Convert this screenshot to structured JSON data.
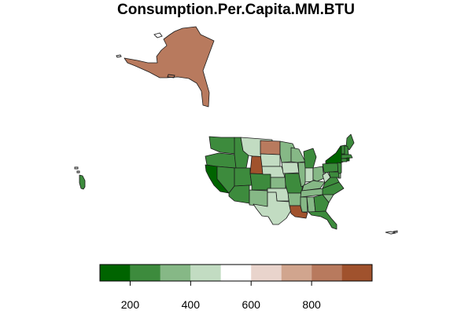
{
  "title": "Consumption.Per.Capita.MM.BTU",
  "colors": {
    "bins": [
      "#006400",
      "#3d8b3d",
      "#86b886",
      "#c2dcc2",
      "#ffffff",
      "#e9d4cc",
      "#d1a58e",
      "#b87a5e",
      "#a0522d"
    ],
    "border": "#1a1a1a"
  },
  "legend": {
    "breaks": [
      100,
      200,
      300,
      400,
      500,
      600,
      700,
      800,
      900,
      1000
    ],
    "ticks": [
      {
        "value": 200,
        "label": "200"
      },
      {
        "value": 400,
        "label": "400"
      },
      {
        "value": 600,
        "label": "600"
      },
      {
        "value": 800,
        "label": "800"
      }
    ]
  },
  "chart_data": {
    "type": "choropleth",
    "title": "Consumption.Per.Capita.MM.BTU",
    "legend_placement": "bottom",
    "scale_range": [
      100,
      1000
    ],
    "regions": [
      {
        "name": "Alaska",
        "value": 850
      },
      {
        "name": "Hawaii",
        "value": 200
      },
      {
        "name": "Washington",
        "value": 280
      },
      {
        "name": "Oregon",
        "value": 260
      },
      {
        "name": "California",
        "value": 190
      },
      {
        "name": "Nevada",
        "value": 270
      },
      {
        "name": "Idaho",
        "value": 290
      },
      {
        "name": "Montana",
        "value": 420
      },
      {
        "name": "Wyoming",
        "value": 950
      },
      {
        "name": "Utah",
        "value": 280
      },
      {
        "name": "Arizona",
        "value": 240
      },
      {
        "name": "Colorado",
        "value": 280
      },
      {
        "name": "New Mexico",
        "value": 320
      },
      {
        "name": "North Dakota",
        "value": 850
      },
      {
        "name": "South Dakota",
        "value": 440
      },
      {
        "name": "Nebraska",
        "value": 460
      },
      {
        "name": "Kansas",
        "value": 380
      },
      {
        "name": "Oklahoma",
        "value": 410
      },
      {
        "name": "Texas",
        "value": 430
      },
      {
        "name": "Minnesota",
        "value": 330
      },
      {
        "name": "Iowa",
        "value": 470
      },
      {
        "name": "Missouri",
        "value": 260
      },
      {
        "name": "Arkansas",
        "value": 330
      },
      {
        "name": "Louisiana",
        "value": 920
      },
      {
        "name": "Wisconsin",
        "value": 300
      },
      {
        "name": "Illinois",
        "value": 310
      },
      {
        "name": "Michigan",
        "value": 280
      },
      {
        "name": "Indiana",
        "value": 440
      },
      {
        "name": "Kentucky",
        "value": 350
      },
      {
        "name": "Tennessee",
        "value": 320
      },
      {
        "name": "Mississippi",
        "value": 380
      },
      {
        "name": "Alabama",
        "value": 380
      },
      {
        "name": "Ohio",
        "value": 320
      },
      {
        "name": "West Virginia",
        "value": 420
      },
      {
        "name": "Virginia",
        "value": 280
      },
      {
        "name": "North Carolina",
        "value": 260
      },
      {
        "name": "South Carolina",
        "value": 320
      },
      {
        "name": "Georgia",
        "value": 280
      },
      {
        "name": "Florida",
        "value": 210
      },
      {
        "name": "Pennsylvania",
        "value": 290
      },
      {
        "name": "New York",
        "value": 190
      },
      {
        "name": "Maine",
        "value": 290
      },
      {
        "name": "Vermont",
        "value": 230
      },
      {
        "name": "New Hampshire",
        "value": 220
      },
      {
        "name": "Massachusetts",
        "value": 200
      },
      {
        "name": "Connecticut",
        "value": 200
      },
      {
        "name": "Rhode Island",
        "value": 180
      },
      {
        "name": "New Jersey",
        "value": 290
      },
      {
        "name": "Delaware",
        "value": 300
      },
      {
        "name": "Maryland",
        "value": 240
      }
    ]
  }
}
